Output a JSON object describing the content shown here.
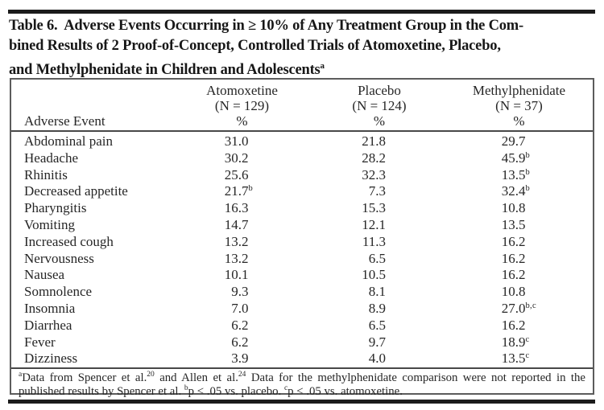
{
  "title": {
    "line1": "Table 6.  Adverse Events Occurring in ≥ 10% of Any Treatment Group in the Com-",
    "line2": "bined Results of 2 Proof-of-Concept, Controlled Trials of Atomoxetine, Placebo,",
    "line3": "and Methylphenidate in Children and Adolescents",
    "superscript": "a"
  },
  "table": {
    "columns": {
      "event_header": "Adverse Event",
      "groups": [
        {
          "name": "Atomoxetine",
          "n": "(N = 129)",
          "unit": "%"
        },
        {
          "name": "Placebo",
          "n": "(N = 124)",
          "unit": "%"
        },
        {
          "name": "Methylphenidate",
          "n": "(N = 37)",
          "unit": "%"
        }
      ]
    },
    "rows": [
      {
        "event": "Abdominal pain",
        "atx": "31.0",
        "atx_sup": "",
        "pbo": "21.8",
        "pbo_sup": "",
        "mph": "29.7",
        "mph_sup": ""
      },
      {
        "event": "Headache",
        "atx": "30.2",
        "atx_sup": "",
        "pbo": "28.2",
        "pbo_sup": "",
        "mph": "45.9",
        "mph_sup": "b"
      },
      {
        "event": "Rhinitis",
        "atx": "25.6",
        "atx_sup": "",
        "pbo": "32.3",
        "pbo_sup": "",
        "mph": "13.5",
        "mph_sup": "b"
      },
      {
        "event": "Decreased appetite",
        "atx": "21.7",
        "atx_sup": "b",
        "pbo": "7.3",
        "pbo_sup": "",
        "mph": "32.4",
        "mph_sup": "b"
      },
      {
        "event": "Pharyngitis",
        "atx": "16.3",
        "atx_sup": "",
        "pbo": "15.3",
        "pbo_sup": "",
        "mph": "10.8",
        "mph_sup": ""
      },
      {
        "event": "Vomiting",
        "atx": "14.7",
        "atx_sup": "",
        "pbo": "12.1",
        "pbo_sup": "",
        "mph": "13.5",
        "mph_sup": ""
      },
      {
        "event": "Increased cough",
        "atx": "13.2",
        "atx_sup": "",
        "pbo": "11.3",
        "pbo_sup": "",
        "mph": "16.2",
        "mph_sup": ""
      },
      {
        "event": "Nervousness",
        "atx": "13.2",
        "atx_sup": "",
        "pbo": "6.5",
        "pbo_sup": "",
        "mph": "16.2",
        "mph_sup": ""
      },
      {
        "event": "Nausea",
        "atx": "10.1",
        "atx_sup": "",
        "pbo": "10.5",
        "pbo_sup": "",
        "mph": "16.2",
        "mph_sup": ""
      },
      {
        "event": "Somnolence",
        "atx": "9.3",
        "atx_sup": "",
        "pbo": "8.1",
        "pbo_sup": "",
        "mph": "10.8",
        "mph_sup": ""
      },
      {
        "event": "Insomnia",
        "atx": "7.0",
        "atx_sup": "",
        "pbo": "8.9",
        "pbo_sup": "",
        "mph": "27.0",
        "mph_sup": "b,c"
      },
      {
        "event": "Diarrhea",
        "atx": "6.2",
        "atx_sup": "",
        "pbo": "6.5",
        "pbo_sup": "",
        "mph": "16.2",
        "mph_sup": ""
      },
      {
        "event": "Fever",
        "atx": "6.2",
        "atx_sup": "",
        "pbo": "9.7",
        "pbo_sup": "",
        "mph": "18.9",
        "mph_sup": "c"
      },
      {
        "event": "Dizziness",
        "atx": "3.9",
        "atx_sup": "",
        "pbo": "4.0",
        "pbo_sup": "",
        "mph": "13.5",
        "mph_sup": "c"
      }
    ]
  },
  "footnote": {
    "seg1_sup": "a",
    "seg1_text": "Data from Spencer et al.",
    "seg2_sup": "20",
    "seg2_text": " and Allen et al.",
    "seg3_sup": "24",
    "seg3_text": " Data for the methylphenidate comparison were not reported in the published results by Spencer et al. ",
    "seg4_sup": "b",
    "seg4_text": "p < .05 vs. placebo. ",
    "seg5_sup": "c",
    "seg5_text": "p < .05 vs. atomoxetine."
  },
  "colors": {
    "background": "#ffffff",
    "text": "#262626",
    "title_text": "#171717",
    "thick_rule": "#1b1b1b",
    "box_border": "#5c5c5c",
    "inner_rule": "#484848"
  }
}
